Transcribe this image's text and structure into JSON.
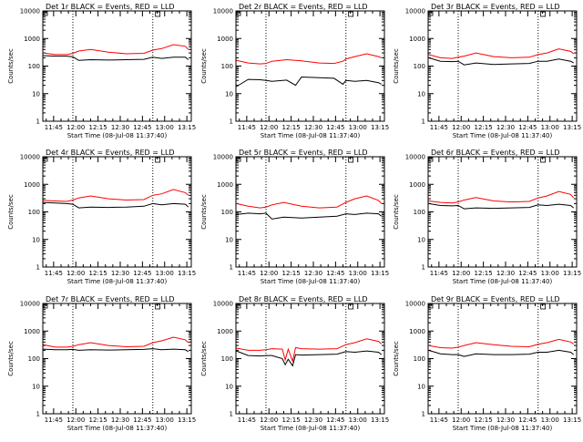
{
  "colors": {
    "events": "#000000",
    "lld": "#ff0000",
    "axes": "#000000",
    "background": "#ffffff"
  },
  "common": {
    "xlabel": "Start Time (08-Jul-08 11:37:40)",
    "ylabel": "Counts/sec",
    "x_tick_labels": [
      "11:45",
      "12:00",
      "12:15",
      "12:30",
      "12:45",
      "13:00",
      "13:15"
    ],
    "x_tick_minutes": [
      705,
      720,
      735,
      750,
      765,
      780,
      795
    ],
    "y_tick_labels": [
      "1",
      "10",
      "100",
      "1000",
      "10000"
    ],
    "ylog": true,
    "ylim": [
      1,
      10000
    ],
    "xlim_minutes": [
      697.7,
      798
    ],
    "vlines_minutes": [
      718,
      772
    ],
    "corner_mark_minute": 775
  },
  "chart_data": [
    {
      "type": "line",
      "title": "Det 1r BLACK = Events, RED = LLD",
      "xlabel": "Start Time (08-Jul-08 11:37:40)",
      "ylabel": "Counts/sec",
      "ylog": true,
      "ylim": [
        1,
        10000
      ],
      "x_minutes": [
        698,
        706,
        714,
        718,
        722,
        730,
        742,
        754,
        766,
        772,
        778,
        786,
        794,
        796
      ],
      "series": [
        {
          "name": "BLACK = Events",
          "values": [
            240,
            230,
            230,
            215,
            160,
            170,
            165,
            170,
            175,
            210,
            190,
            210,
            210,
            170
          ]
        },
        {
          "name": "RED = LLD",
          "values": [
            300,
            260,
            260,
            290,
            350,
            400,
            320,
            280,
            290,
            380,
            430,
            600,
            520,
            400
          ]
        }
      ]
    },
    {
      "type": "line",
      "title": "Det 2r BLACK = Events, RED = LLD",
      "xlabel": "Start Time (08-Jul-08 11:37:40)",
      "ylabel": "Counts/sec",
      "ylog": true,
      "ylim": [
        1,
        10000
      ],
      "x_minutes": [
        698,
        706,
        714,
        718,
        722,
        732,
        738,
        742,
        754,
        764,
        770,
        772,
        778,
        786,
        794,
        796
      ],
      "series": [
        {
          "name": "BLACK = Events",
          "values": [
            18,
            33,
            32,
            30,
            28,
            31,
            20,
            40,
            38,
            36,
            22,
            30,
            28,
            30,
            25,
            22
          ]
        },
        {
          "name": "RED = LLD",
          "values": [
            160,
            130,
            120,
            125,
            150,
            170,
            160,
            155,
            130,
            125,
            150,
            180,
            220,
            280,
            220,
            200
          ]
        }
      ]
    },
    {
      "type": "line",
      "title": "Det 3r BLACK = Events, RED = LLD",
      "xlabel": "Start Time (08-Jul-08 11:37:40)",
      "ylabel": "Counts/sec",
      "ylog": true,
      "ylim": [
        1,
        10000
      ],
      "x_minutes": [
        698,
        706,
        714,
        718,
        722,
        730,
        742,
        754,
        766,
        772,
        778,
        786,
        794,
        796
      ],
      "series": [
        {
          "name": "BLACK = Events",
          "values": [
            200,
            150,
            145,
            150,
            110,
            130,
            115,
            120,
            125,
            150,
            150,
            180,
            150,
            130
          ]
        },
        {
          "name": "RED = LLD",
          "values": [
            260,
            200,
            190,
            210,
            230,
            300,
            220,
            200,
            210,
            260,
            300,
            420,
            340,
            280
          ]
        }
      ]
    },
    {
      "type": "line",
      "title": "Det 4r BLACK = Events, RED = LLD",
      "xlabel": "Start Time (08-Jul-08 11:37:40)",
      "ylabel": "Counts/sec",
      "ylog": true,
      "ylim": [
        1,
        10000
      ],
      "x_minutes": [
        698,
        706,
        714,
        718,
        722,
        730,
        742,
        754,
        766,
        772,
        778,
        786,
        794,
        796
      ],
      "series": [
        {
          "name": "BLACK = Events",
          "values": [
            220,
            210,
            200,
            190,
            140,
            150,
            145,
            150,
            160,
            200,
            180,
            200,
            190,
            150
          ]
        },
        {
          "name": "RED = LLD",
          "values": [
            260,
            250,
            240,
            270,
            320,
            380,
            300,
            270,
            280,
            400,
            450,
            650,
            500,
            400
          ]
        }
      ]
    },
    {
      "type": "line",
      "title": "Det 5r BLACK = Events, RED = LLD",
      "xlabel": "Start Time (08-Jul-08 11:37:40)",
      "ylabel": "Counts/sec",
      "ylog": true,
      "ylim": [
        1,
        10000
      ],
      "x_minutes": [
        698,
        706,
        714,
        718,
        722,
        730,
        742,
        754,
        766,
        772,
        778,
        786,
        794,
        796
      ],
      "series": [
        {
          "name": "BLACK = Events",
          "values": [
            80,
            90,
            85,
            90,
            55,
            65,
            60,
            65,
            70,
            85,
            80,
            90,
            85,
            70
          ]
        },
        {
          "name": "RED = LLD",
          "values": [
            200,
            160,
            140,
            150,
            180,
            220,
            160,
            140,
            150,
            220,
            300,
            380,
            260,
            200
          ]
        }
      ]
    },
    {
      "type": "line",
      "title": "Det 6r BLACK = Events, RED = LLD",
      "xlabel": "Start Time (08-Jul-08 11:37:40)",
      "ylabel": "Counts/sec",
      "ylog": true,
      "ylim": [
        1,
        10000
      ],
      "x_minutes": [
        698,
        706,
        714,
        718,
        722,
        730,
        742,
        754,
        766,
        772,
        778,
        786,
        794,
        796
      ],
      "series": [
        {
          "name": "BLACK = Events",
          "values": [
            200,
            170,
            165,
            170,
            130,
            140,
            135,
            140,
            145,
            180,
            170,
            190,
            170,
            140
          ]
        },
        {
          "name": "RED = LLD",
          "values": [
            250,
            220,
            210,
            230,
            270,
            330,
            250,
            230,
            240,
            320,
            380,
            550,
            430,
            320
          ]
        }
      ]
    },
    {
      "type": "line",
      "title": "Det 7r BLACK = Events, RED = LLD",
      "xlabel": "Start Time (08-Jul-08 11:37:40)",
      "ylabel": "Counts/sec",
      "ylog": true,
      "ylim": [
        1,
        10000
      ],
      "x_minutes": [
        698,
        706,
        714,
        718,
        722,
        730,
        742,
        754,
        766,
        772,
        778,
        786,
        794,
        796
      ],
      "series": [
        {
          "name": "BLACK = Events",
          "values": [
            220,
            210,
            210,
            215,
            200,
            210,
            205,
            210,
            215,
            230,
            210,
            220,
            210,
            180
          ]
        },
        {
          "name": "RED = LLD",
          "values": [
            320,
            260,
            260,
            280,
            320,
            380,
            300,
            270,
            280,
            380,
            440,
            600,
            480,
            380
          ]
        }
      ]
    },
    {
      "type": "line",
      "title": "Det 8r BLACK = Events, RED = LLD",
      "xlabel": "Start Time (08-Jul-08 11:37:40)",
      "ylabel": "Counts/sec",
      "ylog": true,
      "ylim": [
        1,
        10000
      ],
      "x_minutes": [
        698,
        706,
        714,
        718,
        722,
        729,
        731,
        733,
        736,
        738,
        742,
        754,
        766,
        772,
        778,
        786,
        794,
        796
      ],
      "series": [
        {
          "name": "BLACK = Events",
          "values": [
            190,
            130,
            125,
            130,
            130,
            100,
            60,
            95,
            55,
            140,
            135,
            140,
            145,
            180,
            170,
            190,
            170,
            140
          ]
        },
        {
          "name": "RED = LLD",
          "values": [
            240,
            200,
            200,
            210,
            230,
            220,
            90,
            220,
            80,
            250,
            230,
            220,
            230,
            320,
            380,
            520,
            420,
            340
          ]
        }
      ]
    },
    {
      "type": "line",
      "title": "Det 9r BLACK = Events, RED = LLD",
      "xlabel": "Start Time (08-Jul-08 11:37:40)",
      "ylabel": "Counts/sec",
      "ylog": true,
      "ylim": [
        1,
        10000
      ],
      "x_minutes": [
        698,
        706,
        714,
        718,
        722,
        730,
        742,
        754,
        766,
        772,
        778,
        786,
        794,
        796
      ],
      "series": [
        {
          "name": "BLACK = Events",
          "values": [
            200,
            150,
            140,
            140,
            120,
            150,
            140,
            140,
            145,
            170,
            170,
            200,
            170,
            140
          ]
        },
        {
          "name": "RED = LLD",
          "values": [
            300,
            250,
            240,
            260,
            300,
            380,
            320,
            280,
            270,
            330,
            380,
            500,
            400,
            340
          ]
        }
      ]
    }
  ]
}
